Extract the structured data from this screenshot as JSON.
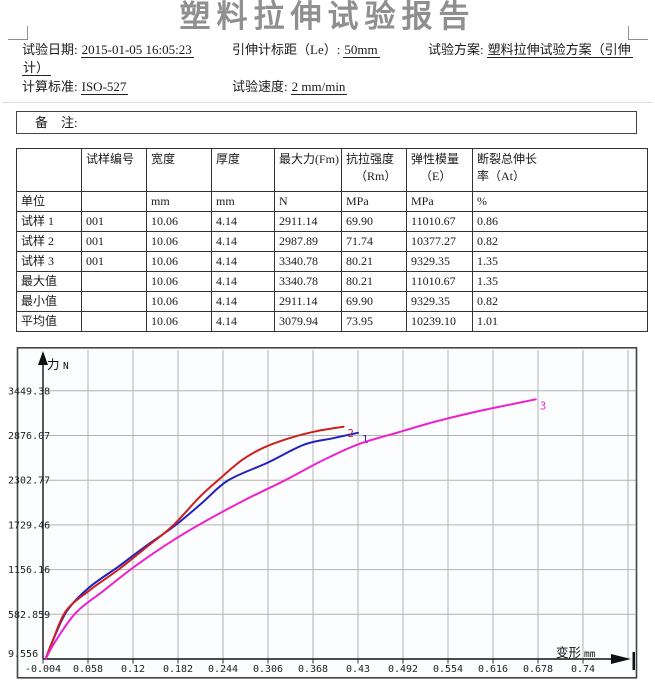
{
  "page": {
    "title": "塑料拉伸试验报告"
  },
  "header": {
    "fields": [
      {
        "label": "试验日期:",
        "value": "2015-01-05 16:05:23"
      },
      {
        "label": "引伸计标距（Le）:",
        "value": "50mm"
      },
      {
        "label": "试验方案:",
        "value": "塑料拉伸试验方案（引伸"
      },
      {
        "label": "",
        "value": "计）"
      },
      {
        "label": "计算标准:",
        "value": "ISO-527"
      },
      {
        "label": "试验速度:",
        "value": "2 mm/min"
      }
    ]
  },
  "remark": {
    "label": "备　注:"
  },
  "table": {
    "headers": [
      [
        ""
      ],
      [
        "试样编号"
      ],
      [
        "宽度"
      ],
      [
        "厚度"
      ],
      [
        "最大力(Fm)"
      ],
      [
        "抗拉强度",
        "（Rm）"
      ],
      [
        "弹性模量",
        "（E）"
      ],
      [
        "断裂总伸长",
        "率（At）"
      ]
    ],
    "rows": [
      {
        "label": "单位",
        "cells": [
          "",
          "mm",
          "mm",
          "N",
          "MPa",
          "MPa",
          "%"
        ]
      },
      {
        "label": "试样 1",
        "cells": [
          "001",
          "10.06",
          "4.14",
          "2911.14",
          "69.90",
          "11010.67",
          "0.86"
        ]
      },
      {
        "label": "试样 2",
        "cells": [
          "001",
          "10.06",
          "4.14",
          "2987.89",
          "71.74",
          "10377.27",
          "0.82"
        ]
      },
      {
        "label": "试样 3",
        "cells": [
          "001",
          "10.06",
          "4.14",
          "3340.78",
          "80.21",
          "9329.35",
          "1.35"
        ]
      },
      {
        "label": "最大值",
        "cells": [
          "",
          "10.06",
          "4.14",
          "3340.78",
          "80.21",
          "11010.67",
          "1.35"
        ]
      },
      {
        "label": "最小值",
        "cells": [
          "",
          "10.06",
          "4.14",
          "2911.14",
          "69.90",
          "9329.35",
          "0.82"
        ]
      },
      {
        "label": "平均值",
        "cells": [
          "",
          "10.06",
          "4.14",
          "3079.94",
          "73.95",
          "10239.10",
          "1.01"
        ]
      }
    ]
  },
  "chart_data": {
    "type": "line",
    "title": "",
    "ylabel": "力",
    "yunit": "N",
    "xlabel": "变形",
    "xunit": "mm",
    "grid": true,
    "legend": "curve-end numeric labels",
    "xlim": [
      -0.004,
      0.74
    ],
    "ylim": [
      9.556,
      3449.38
    ],
    "x_ticks": [
      "-0.004",
      "0.058",
      "0.12",
      "0.182",
      "0.244",
      "0.306",
      "0.368",
      "0.43",
      "0.492",
      "0.554",
      "0.616",
      "0.678",
      "0.74"
    ],
    "y_ticks": [
      "3449.38",
      "2876.07",
      "2302.77",
      "1729.46",
      "1156.16",
      "582.859",
      "9.556"
    ],
    "grid_color": "#b2b2b2",
    "series": [
      {
        "name": "1",
        "color": "#2222bb",
        "points": [
          [
            0,
            20
          ],
          [
            0.012,
            300
          ],
          [
            0.03,
            640
          ],
          [
            0.06,
            930
          ],
          [
            0.1,
            1195
          ],
          [
            0.135,
            1440
          ],
          [
            0.177,
            1715
          ],
          [
            0.215,
            2010
          ],
          [
            0.251,
            2300
          ],
          [
            0.306,
            2530
          ],
          [
            0.356,
            2760
          ],
          [
            0.395,
            2840
          ],
          [
            0.43,
            2911.14
          ]
        ]
      },
      {
        "name": "2",
        "color": "#cc2020",
        "points": [
          [
            0,
            20
          ],
          [
            0.01,
            260
          ],
          [
            0.028,
            630
          ],
          [
            0.06,
            890
          ],
          [
            0.102,
            1170
          ],
          [
            0.14,
            1455
          ],
          [
            0.175,
            1720
          ],
          [
            0.212,
            2090
          ],
          [
            0.237,
            2300
          ],
          [
            0.27,
            2560
          ],
          [
            0.3,
            2720
          ],
          [
            0.335,
            2840
          ],
          [
            0.372,
            2930
          ],
          [
            0.41,
            2987.89
          ]
        ]
      },
      {
        "name": "3",
        "color": "#ee22cc",
        "points": [
          [
            0,
            15
          ],
          [
            0.012,
            220
          ],
          [
            0.041,
            600
          ],
          [
            0.08,
            890
          ],
          [
            0.12,
            1180
          ],
          [
            0.165,
            1470
          ],
          [
            0.208,
            1716
          ],
          [
            0.27,
            2030
          ],
          [
            0.328,
            2295
          ],
          [
            0.38,
            2550
          ],
          [
            0.43,
            2762
          ],
          [
            0.485,
            2915
          ],
          [
            0.535,
            3050
          ],
          [
            0.585,
            3165
          ],
          [
            0.63,
            3255
          ],
          [
            0.675,
            3340.78
          ]
        ]
      }
    ]
  }
}
